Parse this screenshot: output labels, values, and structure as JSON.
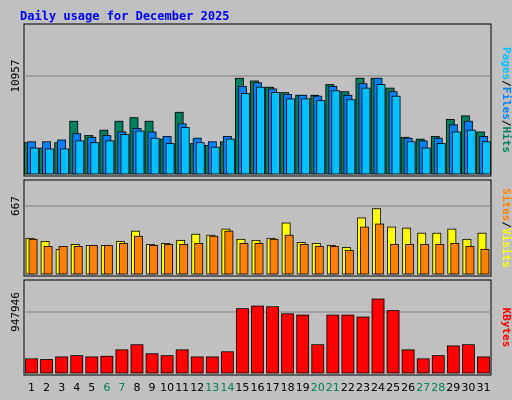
{
  "colors": {
    "page_bg": "#c0c0c0",
    "panel_bg": "#c0c0c0",
    "title": "#0000ff",
    "hits": "#00805c",
    "files": "#0080ff",
    "pages": "#00c0ff",
    "visits": "#ffff00",
    "sites": "#ff8000",
    "kbytes": "#ff0000",
    "weekend_label": "#00805c",
    "weekday_label": "#000000",
    "slash": "#000000"
  },
  "chart_data": {
    "type": "bar",
    "title": "Daily usage for December 2025",
    "categories": [
      "1",
      "2",
      "3",
      "4",
      "5",
      "6",
      "7",
      "8",
      "9",
      "10",
      "11",
      "12",
      "13",
      "14",
      "15",
      "16",
      "17",
      "18",
      "19",
      "20",
      "21",
      "22",
      "23",
      "24",
      "25",
      "26",
      "27",
      "28",
      "29",
      "30",
      "31"
    ],
    "weekend_days": [
      "6",
      "7",
      "13",
      "14",
      "20",
      "21",
      "27",
      "28"
    ],
    "panels": [
      {
        "id": "hits-files-pages",
        "max_label": "10957",
        "ymax": 10957,
        "legend": [
          {
            "text": "Hits",
            "color_key": "hits"
          },
          {
            "text": "Files",
            "color_key": "files"
          },
          {
            "text": "Pages",
            "color_key": "pages"
          }
        ],
        "series": [
          {
            "name": "Hits",
            "color_key": "hits",
            "values": [
              3500,
              2900,
              3500,
              5900,
              4300,
              4900,
              5900,
              6300,
              5900,
              3900,
              6900,
              3400,
              3200,
              3600,
              10700,
              10400,
              9700,
              9100,
              8800,
              8800,
              10000,
              9200,
              10700,
              10700,
              9600,
              4100,
              3900,
              4200,
              6100,
              6500,
              4700
            ]
          },
          {
            "name": "Files",
            "color_key": "files",
            "values": [
              3600,
              3600,
              3800,
              4500,
              4100,
              4300,
              4700,
              5100,
              4700,
              4200,
              5600,
              4000,
              3600,
              4200,
              9800,
              10200,
              9500,
              8900,
              8800,
              8700,
              9800,
              8800,
              10100,
              10700,
              9200,
              4000,
              3700,
              4000,
              5500,
              5900,
              4200
            ]
          },
          {
            "name": "Pages",
            "color_key": "pages",
            "values": [
              2900,
              2800,
              2800,
              3700,
              3500,
              3700,
              4400,
              4800,
              4000,
              3400,
              5200,
              3500,
              3000,
              3900,
              9000,
              9700,
              9100,
              8400,
              8400,
              8200,
              9300,
              8300,
              9600,
              10000,
              8700,
              3600,
              2900,
              3400,
              4700,
              4900,
              3600
            ]
          }
        ]
      },
      {
        "id": "visits-sites",
        "max_label": "667",
        "ymax": 667,
        "legend": [
          {
            "text": "Visits",
            "color_key": "visits"
          },
          {
            "text": "Sites",
            "color_key": "sites"
          }
        ],
        "series": [
          {
            "name": "Visits",
            "color_key": "visits",
            "values": [
              350,
              320,
              240,
              290,
              280,
              280,
              320,
              420,
              290,
              300,
              330,
              390,
              380,
              440,
              340,
              330,
              350,
              500,
              310,
              300,
              280,
              260,
              550,
              640,
              460,
              450,
              400,
              400,
              440,
              340,
              400
            ]
          },
          {
            "name": "Sites",
            "color_key": "sites",
            "values": [
              340,
              270,
              270,
              270,
              280,
              280,
              300,
              370,
              280,
              290,
              290,
              300,
              370,
              420,
              300,
              300,
              340,
              380,
              290,
              270,
              270,
              230,
              460,
              490,
              290,
              290,
              290,
              290,
              300,
              270,
              240
            ]
          }
        ]
      },
      {
        "id": "kbytes",
        "max_label": "947946",
        "ymax": 947946,
        "legend": [
          {
            "text": "KBytes",
            "color_key": "kbytes"
          }
        ],
        "series": [
          {
            "name": "KBytes",
            "color_key": "kbytes",
            "values": [
              220000,
              210000,
              250000,
              270000,
              250000,
              260000,
              360000,
              440000,
              300000,
              270000,
              360000,
              250000,
              250000,
              330000,
              1000000,
              1040000,
              1030000,
              920000,
              900000,
              440000,
              900000,
              900000,
              870000,
              1150000,
              970000,
              360000,
              220000,
              270000,
              420000,
              440000,
              250000
            ]
          }
        ]
      }
    ]
  }
}
